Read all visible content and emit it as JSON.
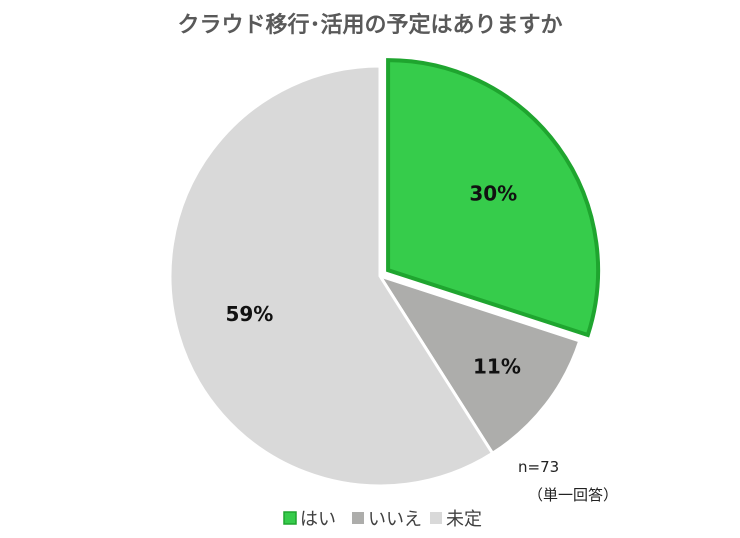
{
  "chart_data": {
    "type": "pie",
    "title": "クラウド移行･活用の予定はありますか",
    "categories": [
      "はい",
      "いいえ",
      "未定"
    ],
    "values": [
      30,
      11,
      59
    ],
    "labels": [
      "30%",
      "11%",
      "59%"
    ],
    "colors": [
      "#36CC4B",
      "#ADADAB",
      "#D9D9D9"
    ],
    "border_color": "#1FA52F",
    "exploded": "はい",
    "legend_position": "bottom",
    "notes": [
      "n=73",
      "（単一回答）"
    ]
  }
}
